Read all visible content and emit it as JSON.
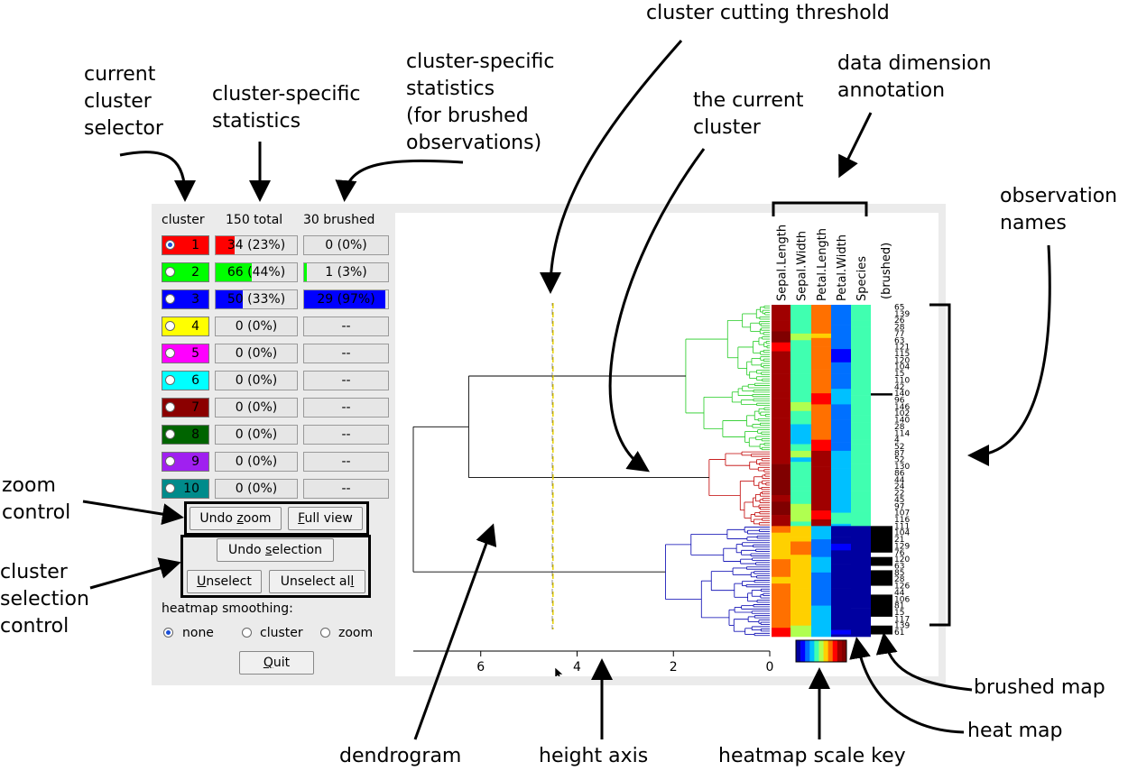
{
  "annotations": {
    "current_cluster_selector": "current\ncluster\nselector",
    "cluster_stats": "cluster-specific\nstatistics",
    "cluster_stats_brushed": "cluster-specific\nstatistics\n(for brushed\nobservations)",
    "cluster_cutting_threshold": "cluster cutting threshold",
    "the_current_cluster": "the current\ncluster",
    "data_dimension_annotation": "data dimension\nannotation",
    "observation_names": "observation\nnames",
    "zoom_control": "zoom\ncontrol",
    "cluster_selection_control": "cluster\nselection\ncontrol",
    "brushed_map": "brushed map",
    "heat_map": "heat map",
    "dendrogram": "dendrogram",
    "height_axis": "height axis",
    "heatmap_scale_key": "heatmap scale key"
  },
  "panel": {
    "col_cluster": "cluster",
    "col_total": "150 total",
    "col_brushed": "30 brushed",
    "clusters": [
      {
        "num": "1",
        "color": "#ff0000",
        "selected": true,
        "total": "34 (23%)",
        "total_frac": 0.23,
        "brushed": "0 (0%)",
        "brushed_frac": 0.0
      },
      {
        "num": "2",
        "color": "#00ff00",
        "selected": false,
        "total": "66 (44%)",
        "total_frac": 0.44,
        "brushed": "1 (3%)",
        "brushed_frac": 0.03
      },
      {
        "num": "3",
        "color": "#0000ff",
        "selected": false,
        "total": "50 (33%)",
        "total_frac": 0.33,
        "brushed": "29 (97%)",
        "brushed_frac": 0.97
      },
      {
        "num": "4",
        "color": "#ffff00",
        "selected": false,
        "total": "0 (0%)",
        "total_frac": 0,
        "brushed": "--",
        "brushed_frac": 0
      },
      {
        "num": "5",
        "color": "#ff00ff",
        "selected": false,
        "total": "0 (0%)",
        "total_frac": 0,
        "brushed": "--",
        "brushed_frac": 0
      },
      {
        "num": "6",
        "color": "#00ffff",
        "selected": false,
        "total": "0 (0%)",
        "total_frac": 0,
        "brushed": "--",
        "brushed_frac": 0
      },
      {
        "num": "7",
        "color": "#8b0000",
        "selected": false,
        "total": "0 (0%)",
        "total_frac": 0,
        "brushed": "--",
        "brushed_frac": 0
      },
      {
        "num": "8",
        "color": "#006400",
        "selected": false,
        "total": "0 (0%)",
        "total_frac": 0,
        "brushed": "--",
        "brushed_frac": 0
      },
      {
        "num": "9",
        "color": "#a020f0",
        "selected": false,
        "total": "0 (0%)",
        "total_frac": 0,
        "brushed": "--",
        "brushed_frac": 0
      },
      {
        "num": "10",
        "color": "#008b8b",
        "selected": false,
        "total": "0 (0%)",
        "total_frac": 0,
        "brushed": "--",
        "brushed_frac": 0
      }
    ],
    "undo_zoom": "Undo zoom",
    "full_view": "Full view",
    "undo_selection": "Undo selection",
    "unselect": "Unselect",
    "unselect_all": "Unselect all",
    "smoothing_label": "heatmap smoothing:",
    "smoothing_none": "none",
    "smoothing_cluster": "cluster",
    "smoothing_zoom": "zoom",
    "smoothing_selected": "none",
    "quit": "Quit"
  },
  "plot": {
    "dimensions": [
      "Sepal.Length",
      "Sepal.Width",
      "Petal.Length",
      "Petal.Width",
      "Species"
    ],
    "brushed_label": "(brushed)",
    "axis_ticks": [
      "6",
      "4",
      "2",
      "0"
    ],
    "threshold_height": 4.5,
    "cluster_colors": {
      "c1": "#c00000",
      "c2": "#22cc22",
      "c3": "#0000b0",
      "root": "#000000"
    },
    "threshold_color": "#e8d000"
  }
}
